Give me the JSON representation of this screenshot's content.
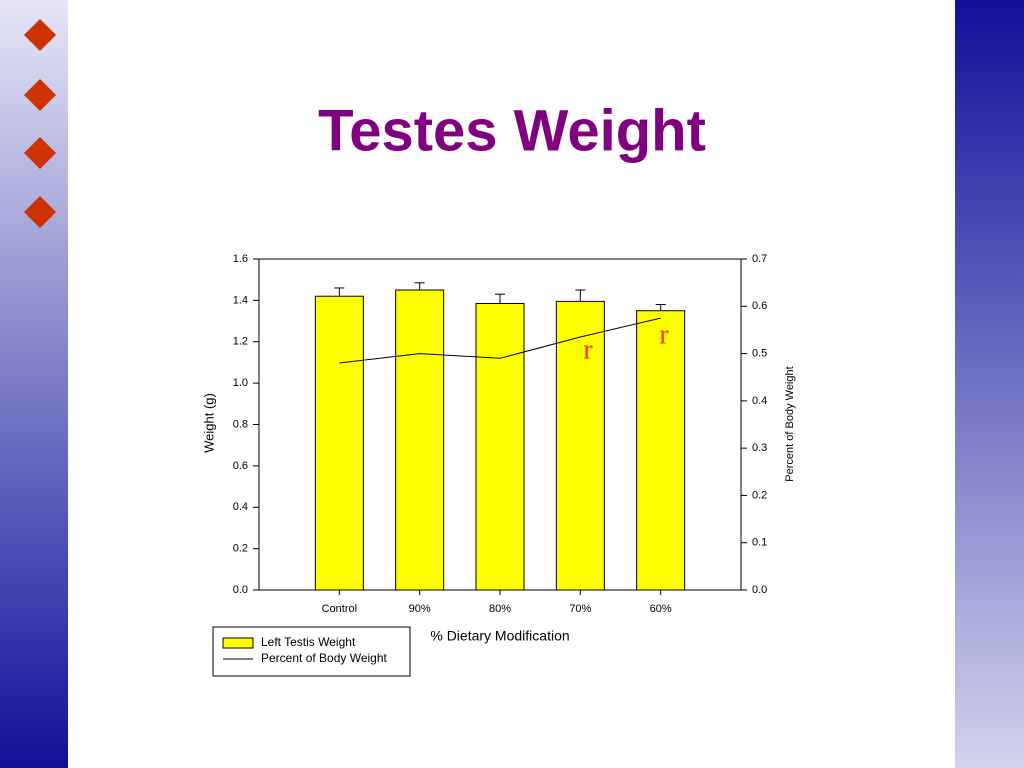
{
  "chart_data": {
    "type": "bar",
    "title": "Testes Weight",
    "x_label": "% Dietary Modification",
    "y_label": "Weight (g)",
    "y2_label": "Percent of Body Weight",
    "categories": [
      "Control",
      "90%",
      "80%",
      "70%",
      "60%"
    ],
    "series": [
      {
        "name": "Left Testis Weight",
        "type": "bar",
        "color": "#ffff00",
        "values": [
          1.42,
          1.45,
          1.385,
          1.395,
          1.35
        ],
        "errors": [
          0.04,
          0.035,
          0.045,
          0.055,
          0.03
        ]
      },
      {
        "name": "Percent of Body Weight",
        "type": "line",
        "axis": "y2",
        "color": "#000000",
        "values": [
          0.48,
          0.5,
          0.49,
          0.535,
          0.575
        ]
      }
    ],
    "ylim": [
      0,
      1.6
    ],
    "yticks": [
      {
        "value": 0,
        "label": "0.0"
      },
      0.2,
      0.4,
      0.6,
      0.8,
      {
        "value": 1,
        "label": "1.0"
      },
      1.2,
      1.4,
      1.6
    ],
    "y2lim": [
      0,
      0.7
    ],
    "y2ticks": [
      {
        "value": 0,
        "label": "0.0"
      },
      0.1,
      0.2,
      0.3,
      0.4,
      0.5,
      0.6,
      0.7
    ],
    "annotations": [
      "r",
      "r"
    ],
    "legend": "bottom-left"
  }
}
